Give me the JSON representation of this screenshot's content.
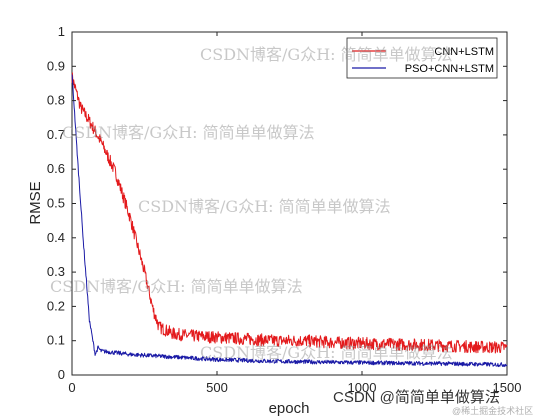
{
  "chart_data": {
    "type": "line",
    "title": "",
    "xlabel": "epoch",
    "ylabel": "RMSE",
    "xlim": [
      0,
      1500
    ],
    "ylim": [
      0,
      1
    ],
    "xticks": [
      0,
      500,
      1000,
      1500
    ],
    "xtick_labels": [
      "0",
      "500",
      "1000",
      "1500"
    ],
    "yticks": [
      0,
      0.1,
      0.2,
      0.3,
      0.4,
      0.5,
      0.6,
      0.7,
      0.8,
      0.9,
      1
    ],
    "ytick_labels": [
      "0",
      "0.1",
      "0.2",
      "0.3",
      "0.4",
      "0.5",
      "0.6",
      "0.7",
      "0.8",
      "0.9",
      "1"
    ],
    "grid": false,
    "legend_position": "top-right",
    "series": [
      {
        "name": "CNN+LSTM",
        "color": "#e31a1c",
        "x": [
          0,
          30,
          60,
          100,
          150,
          200,
          250,
          280,
          300,
          350,
          400,
          500,
          600,
          700,
          800,
          900,
          1000,
          1100,
          1200,
          1300,
          1400,
          1500
        ],
        "y": [
          0.87,
          0.78,
          0.74,
          0.68,
          0.59,
          0.46,
          0.3,
          0.19,
          0.14,
          0.12,
          0.115,
          0.11,
          0.105,
          0.1,
          0.1,
          0.095,
          0.092,
          0.09,
          0.088,
          0.085,
          0.082,
          0.08
        ]
      },
      {
        "name": "PSO+CNN+LSTM",
        "color": "#1a1aa6",
        "x": [
          0,
          20,
          40,
          60,
          80,
          90,
          100,
          150,
          200,
          300,
          400,
          500,
          700,
          900,
          1100,
          1300,
          1500
        ],
        "y": [
          0.88,
          0.62,
          0.38,
          0.16,
          0.06,
          0.08,
          0.07,
          0.065,
          0.06,
          0.055,
          0.05,
          0.045,
          0.04,
          0.037,
          0.035,
          0.033,
          0.03
        ]
      }
    ]
  },
  "watermarks": [
    "CSDN博客/G众H: 简简单单做算法",
    "CSDN博客/G众H: 简简单单做算法",
    "CSDN博客/G众H: 简简单单做算法",
    "CSDN博客/G众H: 简简单单做算法",
    "CSDN博客/G众H: 简简单单做算法"
  ],
  "credit": {
    "main": "CSDN @简简单单做算法",
    "sub": "@稀土掘金技术社区"
  }
}
